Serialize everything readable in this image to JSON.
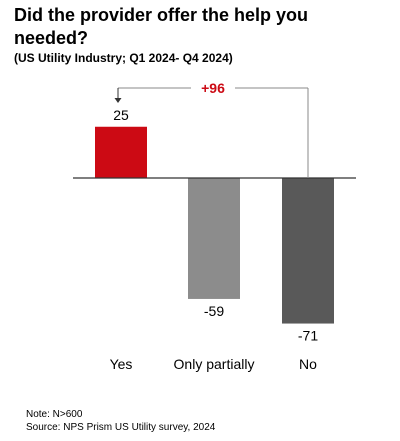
{
  "title": "Did the provider offer the help you needed?",
  "subtitle": "(US Utility Industry; Q1 2024- Q4 2024)",
  "chart_data": {
    "type": "bar",
    "categories": [
      "Yes",
      "Only partially",
      "No"
    ],
    "values": [
      25,
      -59,
      -71
    ],
    "value_labels": [
      "25",
      "-59",
      "-71"
    ],
    "colors": [
      "#cc0a14",
      "#8c8c8c",
      "#595959"
    ],
    "annotation": {
      "text": "+96",
      "from": "No",
      "to": "Yes",
      "color": "#cc0a14"
    },
    "ylim": [
      -75,
      30
    ],
    "grid": false,
    "legend": "none"
  },
  "notes": {
    "note": "Note: N>600",
    "source": "Source: NPS Prism US Utility survey, 2024"
  }
}
